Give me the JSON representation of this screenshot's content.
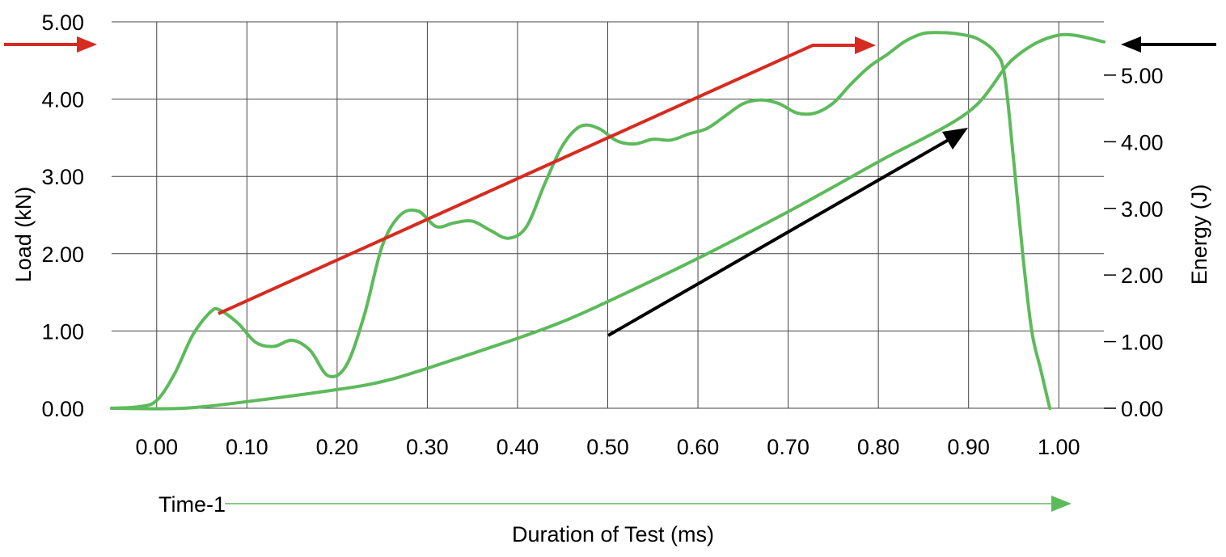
{
  "chart_data": {
    "type": "line",
    "title": "",
    "xlabel": "Duration of Test (ms)",
    "ylabel_left": "Load (kN)",
    "ylabel_right": "Energy (J)",
    "xlim": [
      -0.05,
      1.05
    ],
    "ylim_left": [
      0,
      5
    ],
    "ylim_right": [
      0,
      5.8
    ],
    "x_ticks": [
      "0.00",
      "0.10",
      "0.20",
      "0.30",
      "0.40",
      "0.50",
      "0.60",
      "0.70",
      "0.80",
      "0.90",
      "1.00"
    ],
    "x_tick_values": [
      0,
      0.1,
      0.2,
      0.3,
      0.4,
      0.5,
      0.6,
      0.7,
      0.8,
      0.9,
      1.0
    ],
    "y_left_ticks": [
      "0.00",
      "1.00",
      "2.00",
      "3.00",
      "4.00",
      "5.00"
    ],
    "y_left_tick_values": [
      0,
      1,
      2,
      3,
      4,
      5
    ],
    "y_right_ticks": [
      "0.00",
      "1.00",
      "2.00",
      "3.00",
      "4.00",
      "5.00"
    ],
    "y_right_tick_values": [
      0,
      1,
      2,
      3,
      4,
      5
    ],
    "grid": true,
    "time_marker_label": "Time-1",
    "series": [
      {
        "axis": "left",
        "color": "#5dba5b",
        "x": [
          -0.05,
          -0.02,
          0.0,
          0.02,
          0.04,
          0.06,
          0.07,
          0.09,
          0.11,
          0.13,
          0.15,
          0.17,
          0.19,
          0.21,
          0.23,
          0.25,
          0.27,
          0.29,
          0.31,
          0.33,
          0.35,
          0.37,
          0.39,
          0.41,
          0.43,
          0.45,
          0.47,
          0.49,
          0.51,
          0.53,
          0.55,
          0.57,
          0.59,
          0.61,
          0.63,
          0.65,
          0.67,
          0.69,
          0.71,
          0.73,
          0.75,
          0.77,
          0.79,
          0.81,
          0.83,
          0.85,
          0.87,
          0.89,
          0.91,
          0.93,
          0.94,
          0.95,
          0.96,
          0.97,
          0.98,
          0.99
        ],
        "y": [
          0.0,
          0.02,
          0.1,
          0.45,
          0.95,
          1.25,
          1.27,
          1.1,
          0.85,
          0.8,
          0.88,
          0.75,
          0.42,
          0.55,
          1.2,
          2.1,
          2.5,
          2.55,
          2.35,
          2.4,
          2.42,
          2.3,
          2.2,
          2.35,
          2.9,
          3.4,
          3.65,
          3.62,
          3.46,
          3.42,
          3.48,
          3.47,
          3.55,
          3.62,
          3.78,
          3.94,
          3.99,
          3.94,
          3.82,
          3.82,
          3.95,
          4.2,
          4.42,
          4.58,
          4.75,
          4.85,
          4.86,
          4.84,
          4.78,
          4.6,
          4.3,
          3.2,
          2.0,
          1.0,
          0.5,
          0.0
        ]
      },
      {
        "axis": "right",
        "color": "#5dba5b",
        "x": [
          -0.05,
          0.03,
          0.1,
          0.2,
          0.25,
          0.3,
          0.4,
          0.45,
          0.5,
          0.6,
          0.7,
          0.8,
          0.9,
          0.95,
          1.0,
          1.05
        ],
        "y": [
          0.0,
          0.0,
          0.1,
          0.28,
          0.4,
          0.6,
          1.05,
          1.3,
          1.6,
          2.25,
          2.95,
          3.7,
          4.45,
          5.25,
          5.6,
          5.5
        ]
      }
    ]
  }
}
